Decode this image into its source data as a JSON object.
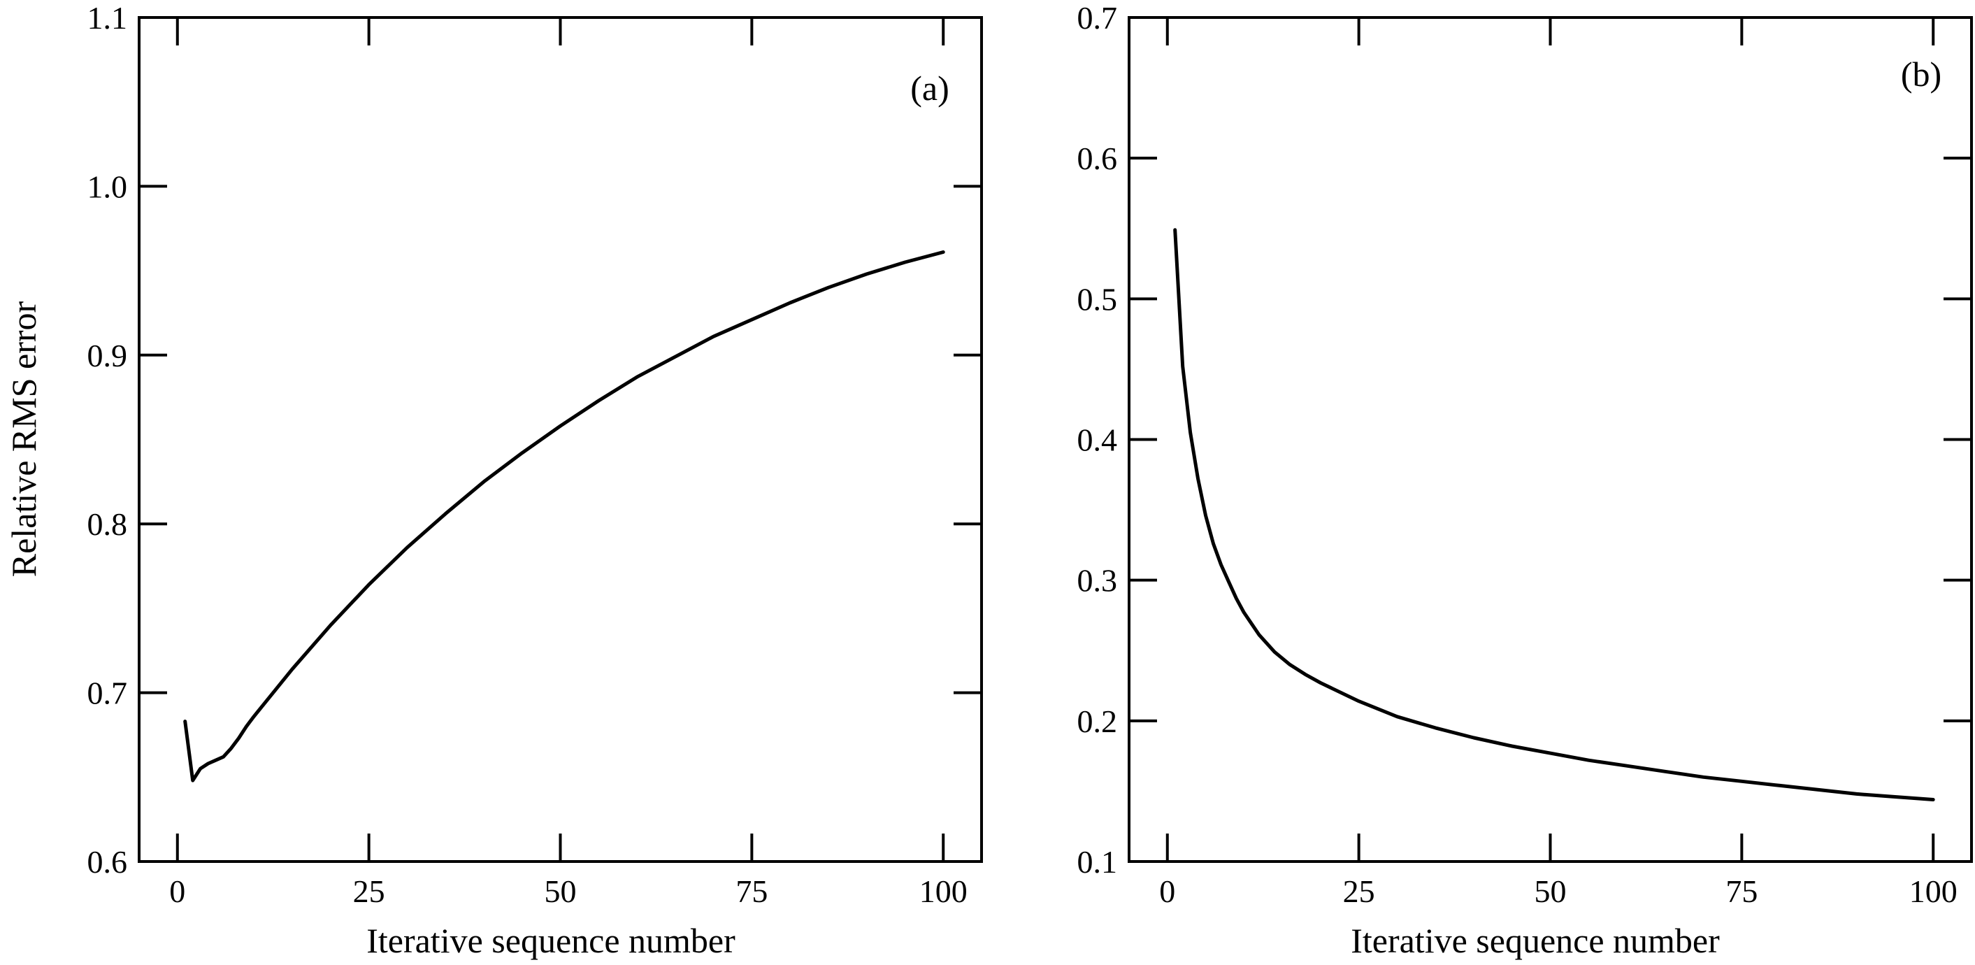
{
  "chart_data": [
    {
      "type": "line",
      "panel_label": "(a)",
      "xlabel": "Iterative sequence number",
      "ylabel": "Relative RMS error",
      "xlim": [
        -5,
        105
      ],
      "ylim": [
        0.6,
        1.1
      ],
      "xticks": [
        0,
        25,
        50,
        75,
        100
      ],
      "yticks": [
        0.6,
        0.7,
        0.8,
        0.9,
        1.0,
        1.1
      ],
      "xtick_labels": [
        "0",
        "25",
        "50",
        "75",
        "100"
      ],
      "ytick_labels": [
        "0.6",
        "0.7",
        "0.8",
        "0.9",
        "1.0",
        "1.1"
      ],
      "grid": false,
      "line_color": "#000000",
      "series": [
        {
          "x": [
            1,
            2,
            3,
            4,
            5,
            6,
            7,
            8,
            9,
            10,
            15,
            20,
            25,
            30,
            35,
            40,
            45,
            50,
            55,
            60,
            65,
            70,
            75,
            80,
            85,
            90,
            95,
            100
          ],
          "y": [
            0.683,
            0.648,
            0.655,
            0.658,
            0.66,
            0.662,
            0.667,
            0.673,
            0.68,
            0.686,
            0.714,
            0.74,
            0.764,
            0.786,
            0.806,
            0.825,
            0.842,
            0.858,
            0.873,
            0.887,
            0.899,
            0.911,
            0.921,
            0.931,
            0.94,
            0.948,
            0.955,
            0.961
          ]
        }
      ]
    },
    {
      "type": "line",
      "panel_label": "(b)",
      "xlabel": "Iterative sequence number",
      "ylabel": "",
      "xlim": [
        -5,
        105
      ],
      "ylim": [
        0.1,
        0.7
      ],
      "xticks": [
        0,
        25,
        50,
        75,
        100
      ],
      "yticks": [
        0.1,
        0.2,
        0.3,
        0.4,
        0.5,
        0.6,
        0.7
      ],
      "xtick_labels": [
        "0",
        "25",
        "50",
        "75",
        "100"
      ],
      "ytick_labels": [
        "0.1",
        "0.2",
        "0.3",
        "0.4",
        "0.5",
        "0.6",
        "0.7"
      ],
      "grid": false,
      "line_color": "#000000",
      "series": [
        {
          "x": [
            1,
            2,
            3,
            4,
            5,
            6,
            7,
            8,
            9,
            10,
            12,
            14,
            16,
            18,
            20,
            25,
            30,
            35,
            40,
            45,
            50,
            55,
            60,
            65,
            70,
            75,
            80,
            85,
            90,
            95,
            100
          ],
          "y": [
            0.549,
            0.452,
            0.405,
            0.372,
            0.346,
            0.326,
            0.311,
            0.299,
            0.287,
            0.277,
            0.261,
            0.249,
            0.24,
            0.233,
            0.227,
            0.214,
            0.203,
            0.195,
            0.188,
            0.182,
            0.177,
            0.172,
            0.168,
            0.164,
            0.16,
            0.157,
            0.154,
            0.151,
            0.148,
            0.146,
            0.144
          ]
        }
      ]
    }
  ]
}
